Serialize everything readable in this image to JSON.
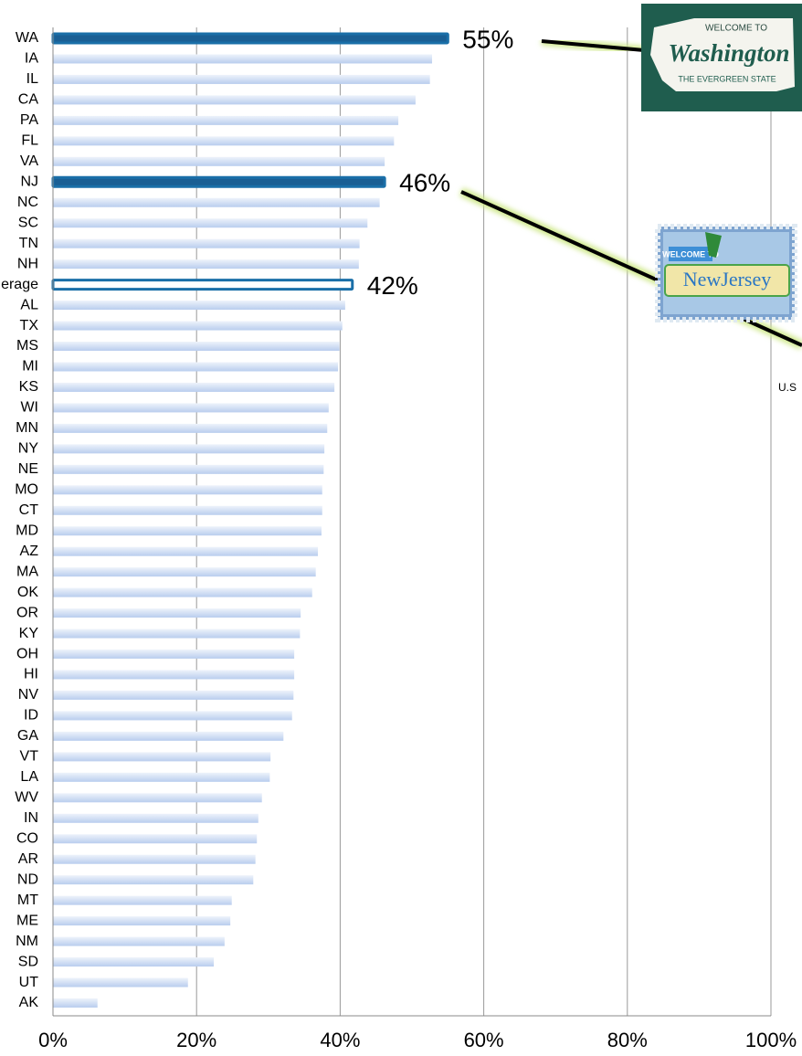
{
  "chart_data": {
    "type": "bar",
    "orientation": "horizontal",
    "categories": [
      "WA",
      "IA",
      "IL",
      "CA",
      "PA",
      "FL",
      "VA",
      "NJ",
      "NC",
      "SC",
      "TN",
      "NH",
      "erage",
      "AL",
      "TX",
      "MS",
      "MI",
      "KS",
      "WI",
      "MN",
      "NY",
      "NE",
      "MO",
      "CT",
      "MD",
      "AZ",
      "MA",
      "OK",
      "OR",
      "KY",
      "OH",
      "HI",
      "NV",
      "ID",
      "GA",
      "VT",
      "LA",
      "WV",
      "IN",
      "CO",
      "AR",
      "ND",
      "MT",
      "ME",
      "NM",
      "SD",
      "UT",
      "AK"
    ],
    "values": [
      55,
      52.8,
      52.5,
      50.5,
      48.1,
      47.5,
      46.2,
      46.2,
      45.5,
      43.8,
      42.7,
      42.6,
      41.7,
      40.7,
      40.3,
      39.9,
      39.7,
      39.2,
      38.4,
      38.2,
      37.8,
      37.7,
      37.5,
      37.5,
      37.4,
      36.9,
      36.6,
      36.1,
      34.5,
      34.4,
      33.6,
      33.6,
      33.5,
      33.3,
      32.1,
      30.3,
      30.2,
      29.1,
      28.6,
      28.4,
      28.2,
      27.9,
      24.9,
      24.7,
      23.9,
      22.4,
      18.8,
      6.2
    ],
    "value_labels": [
      "55%",
      null,
      null,
      null,
      null,
      null,
      null,
      "46%",
      null,
      null,
      null,
      null,
      "42%",
      null,
      null,
      null,
      null,
      null,
      null,
      null,
      null,
      null,
      null,
      null,
      null,
      null,
      null,
      null,
      null,
      null,
      null,
      null,
      null,
      null,
      null,
      null,
      null,
      null,
      null,
      null,
      null,
      null,
      null,
      null,
      null,
      null,
      null,
      null
    ],
    "colors": [
      "#1a5f94",
      "#c9d9f2",
      "#c9d9f2",
      "#c9d9f2",
      "#c9d9f2",
      "#c9d9f2",
      "#c9d9f2",
      "#1a5f94",
      "#c9d9f2",
      "#c9d9f2",
      "#c9d9f2",
      "#c9d9f2",
      "#ffffff",
      "#c9d9f2",
      "#c9d9f2",
      "#c9d9f2",
      "#c9d9f2",
      "#c9d9f2",
      "#c9d9f2",
      "#c9d9f2",
      "#c9d9f2",
      "#c9d9f2",
      "#c9d9f2",
      "#c9d9f2",
      "#c9d9f2",
      "#c9d9f2",
      "#c9d9f2",
      "#c9d9f2",
      "#c9d9f2",
      "#c9d9f2",
      "#c9d9f2",
      "#c9d9f2",
      "#c9d9f2",
      "#c9d9f2",
      "#c9d9f2",
      "#c9d9f2",
      "#c9d9f2",
      "#c9d9f2",
      "#c9d9f2",
      "#c9d9f2",
      "#c9d9f2",
      "#c9d9f2",
      "#c9d9f2",
      "#c9d9f2",
      "#c9d9f2",
      "#c9d9f2",
      "#c9d9f2",
      "#c9d9f2"
    ],
    "edge_color": "#1a6fa8",
    "xlim": [
      0,
      100
    ],
    "xticks": [
      {
        "value": 0,
        "label": "0%"
      },
      {
        "value": 20,
        "label": "20%"
      },
      {
        "value": 40,
        "label": "40%"
      },
      {
        "value": 60,
        "label": "60%"
      },
      {
        "value": 80,
        "label": "80%"
      },
      {
        "value": 100,
        "label": "100%"
      }
    ],
    "grid": true,
    "annotations": {
      "washington_sign": [
        "WELCOME TO",
        "Washington",
        "THE EVERGREEN STATE"
      ],
      "new_jersey_sign": [
        "WELCOME TO",
        "NewJersey"
      ],
      "cropped_label": "U.S"
    }
  }
}
